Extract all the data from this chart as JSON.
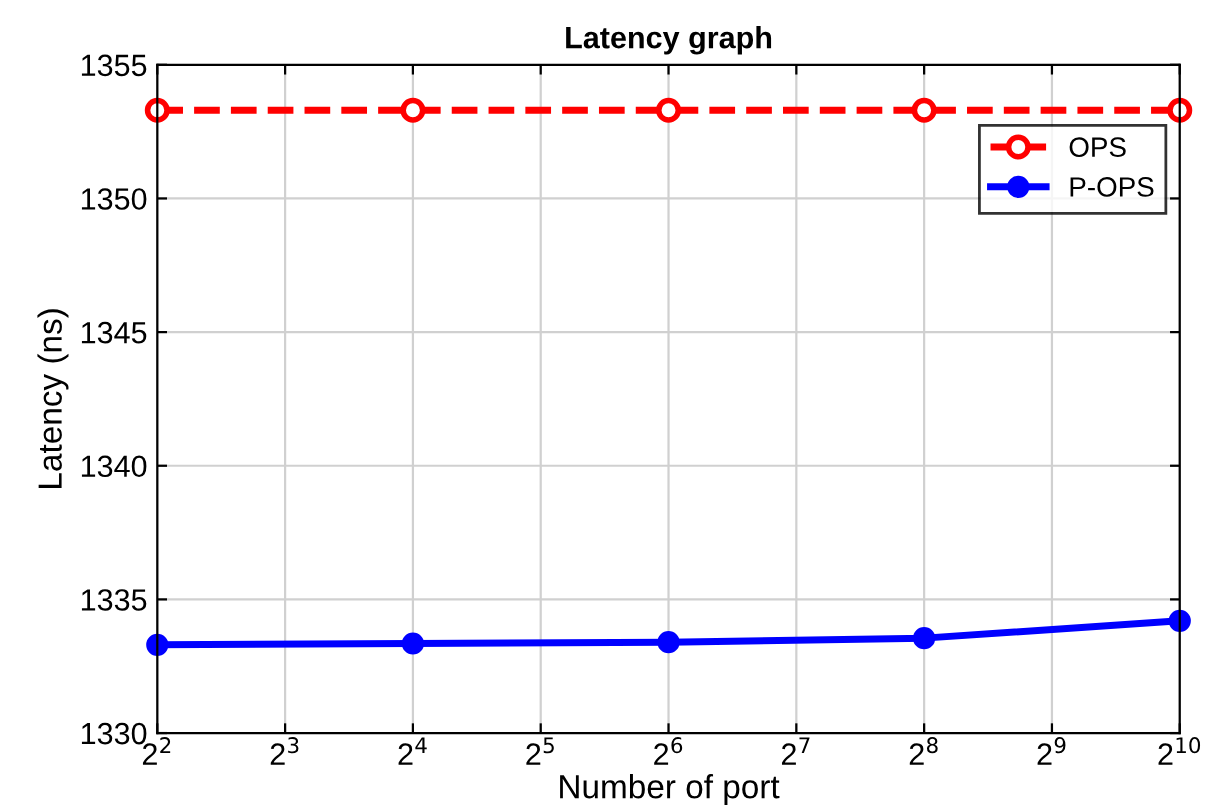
{
  "chart_data": {
    "type": "line",
    "title": "Latency graph",
    "xlabel": "Number of port",
    "ylabel": "Latency (ns)",
    "x": [
      4,
      16,
      64,
      256,
      1024
    ],
    "series": [
      {
        "name": "OPS",
        "color": "#ff0000",
        "values": [
          1353.3,
          1353.3,
          1353.3,
          1353.3,
          1353.3
        ],
        "line_style": "dashed",
        "marker": "circle"
      },
      {
        "name": "P-OPS",
        "color": "#0000ff",
        "values": [
          1333.3,
          1333.35,
          1333.4,
          1333.55,
          1334.2
        ],
        "line_style": "solid",
        "marker": "circle"
      }
    ],
    "log": "x",
    "xlim": [
      4,
      1024
    ],
    "xticks": [
      {
        "value": 4,
        "label": "2$^{2}$"
      },
      {
        "value": 8,
        "label": "2$^{3}$"
      },
      {
        "value": 16,
        "label": "2$^{4}$"
      },
      {
        "value": 32,
        "label": "2$^{5}$"
      },
      {
        "value": 64,
        "label": "2$^{6}$"
      },
      {
        "value": 128,
        "label": "2$^{7}$"
      },
      {
        "value": 256,
        "label": "2$^{8}$"
      },
      {
        "value": 512,
        "label": "2$^{9}$"
      },
      {
        "value": 1024,
        "label": "2$^{10}$"
      }
    ],
    "ylim": [
      1330,
      1355
    ],
    "yticks": [
      1330,
      1335,
      1340,
      1345,
      1350,
      1355
    ],
    "grid": true,
    "legend": "top right"
  }
}
